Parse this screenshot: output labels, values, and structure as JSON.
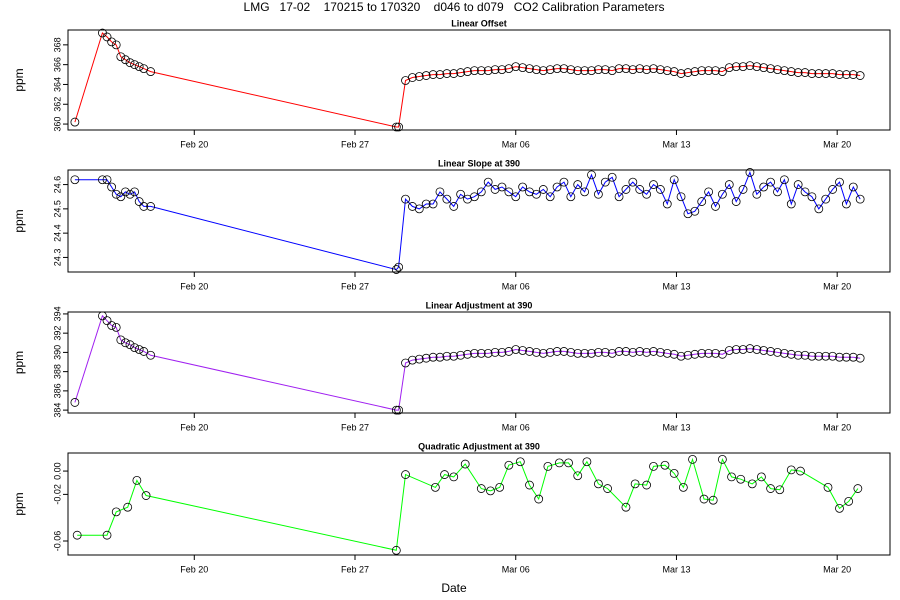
{
  "title": "LMG   17-02    170215 to 170320    d046 to d079   CO2 Calibration Parameters",
  "xlabel": "Date",
  "chart_data": [
    {
      "type": "line",
      "marker": "circle",
      "title": "Linear Offset",
      "ylabel": "ppm",
      "color": "#ff0000",
      "xlim": [
        45.5,
        81.3
      ],
      "xticks": [
        {
          "value": 51,
          "label": "Feb 20"
        },
        {
          "value": 58,
          "label": "Feb 27"
        },
        {
          "value": 65,
          "label": "Mar 06"
        },
        {
          "value": 72,
          "label": "Mar 13"
        },
        {
          "value": 79,
          "label": "Mar 20"
        }
      ],
      "ylim": [
        359.4,
        369.5
      ],
      "yticks": [
        360,
        362,
        364,
        366,
        368
      ],
      "x": [
        45.8,
        47.0,
        47.2,
        47.4,
        47.6,
        47.8,
        48.0,
        48.2,
        48.4,
        48.6,
        48.8,
        49.1,
        59.8,
        59.9,
        60.2,
        60.5,
        60.8,
        61.1,
        61.4,
        61.7,
        62.0,
        62.3,
        62.6,
        62.9,
        63.2,
        63.5,
        63.8,
        64.1,
        64.4,
        64.7,
        65.0,
        65.3,
        65.6,
        65.9,
        66.2,
        66.5,
        66.8,
        67.1,
        67.4,
        67.7,
        68.0,
        68.3,
        68.6,
        68.9,
        69.2,
        69.5,
        69.8,
        70.1,
        70.4,
        70.7,
        71.0,
        71.3,
        71.6,
        71.9,
        72.2,
        72.5,
        72.8,
        73.1,
        73.4,
        73.7,
        74.0,
        74.3,
        74.6,
        74.9,
        75.2,
        75.5,
        75.8,
        76.1,
        76.4,
        76.7,
        77.0,
        77.3,
        77.6,
        77.9,
        78.2,
        78.5,
        78.8,
        79.1,
        79.4,
        79.7,
        80.0
      ],
      "values": [
        360.2,
        369.2,
        368.8,
        368.3,
        368.0,
        366.8,
        366.5,
        366.2,
        366.0,
        365.8,
        365.6,
        365.3,
        359.7,
        359.7,
        364.4,
        364.7,
        364.8,
        364.9,
        365.0,
        365.0,
        365.1,
        365.1,
        365.2,
        365.3,
        365.4,
        365.4,
        365.4,
        365.5,
        365.5,
        365.6,
        365.8,
        365.7,
        365.6,
        365.5,
        365.4,
        365.5,
        365.6,
        365.6,
        365.5,
        365.4,
        365.4,
        365.4,
        365.5,
        365.5,
        365.4,
        365.6,
        365.6,
        365.5,
        365.6,
        365.5,
        365.6,
        365.5,
        365.4,
        365.3,
        365.1,
        365.2,
        365.3,
        365.4,
        365.4,
        365.4,
        365.3,
        365.7,
        365.8,
        365.8,
        365.9,
        365.8,
        365.7,
        365.6,
        365.5,
        365.4,
        365.3,
        365.2,
        365.2,
        365.1,
        365.1,
        365.1,
        365.1,
        365.0,
        365.0,
        365.0,
        364.9
      ]
    },
    {
      "type": "line",
      "marker": "circle",
      "title": "Linear Slope at 390",
      "ylabel": "ppm",
      "color": "#0000ff",
      "xlim": [
        45.5,
        81.3
      ],
      "xticks": [
        {
          "value": 51,
          "label": "Feb 20"
        },
        {
          "value": 58,
          "label": "Feb 27"
        },
        {
          "value": 65,
          "label": "Mar 06"
        },
        {
          "value": 72,
          "label": "Mar 13"
        },
        {
          "value": 79,
          "label": "Mar 20"
        }
      ],
      "ylim": [
        24.24,
        24.66
      ],
      "yticks": [
        24.3,
        24.4,
        24.5,
        24.6
      ],
      "x": [
        45.8,
        47.0,
        47.2,
        47.4,
        47.6,
        47.8,
        48.0,
        48.2,
        48.4,
        48.6,
        48.8,
        49.1,
        59.8,
        59.9,
        60.2,
        60.5,
        60.8,
        61.1,
        61.4,
        61.7,
        62.0,
        62.3,
        62.6,
        62.9,
        63.2,
        63.5,
        63.8,
        64.1,
        64.4,
        64.7,
        65.0,
        65.3,
        65.6,
        65.9,
        66.2,
        66.5,
        66.8,
        67.1,
        67.4,
        67.7,
        68.0,
        68.3,
        68.6,
        68.9,
        69.2,
        69.5,
        69.8,
        70.1,
        70.4,
        70.7,
        71.0,
        71.3,
        71.6,
        71.9,
        72.2,
        72.5,
        72.8,
        73.1,
        73.4,
        73.7,
        74.0,
        74.3,
        74.6,
        74.9,
        75.2,
        75.5,
        75.8,
        76.1,
        76.4,
        76.7,
        77.0,
        77.3,
        77.6,
        77.9,
        78.2,
        78.5,
        78.8,
        79.1,
        79.4,
        79.7,
        80.0
      ],
      "values": [
        24.62,
        24.62,
        24.62,
        24.59,
        24.56,
        24.55,
        24.57,
        24.56,
        24.57,
        24.53,
        24.51,
        24.51,
        24.25,
        24.26,
        24.54,
        24.51,
        24.5,
        24.52,
        24.52,
        24.57,
        24.54,
        24.51,
        24.56,
        24.54,
        24.55,
        24.57,
        24.61,
        24.58,
        24.59,
        24.57,
        24.55,
        24.59,
        24.57,
        24.56,
        24.58,
        24.55,
        24.59,
        24.61,
        24.55,
        24.6,
        24.57,
        24.64,
        24.56,
        24.61,
        24.63,
        24.55,
        24.58,
        24.61,
        24.58,
        24.56,
        24.6,
        24.58,
        24.52,
        24.62,
        24.55,
        24.48,
        24.49,
        24.53,
        24.57,
        24.51,
        24.56,
        24.6,
        24.53,
        24.58,
        24.65,
        24.56,
        24.59,
        24.61,
        24.57,
        24.62,
        24.52,
        24.6,
        24.57,
        24.55,
        24.5,
        24.54,
        24.58,
        24.61,
        24.52,
        24.59,
        24.54
      ]
    },
    {
      "type": "line",
      "marker": "circle",
      "title": "Linear Adjustment at 390",
      "ylabel": "ppm",
      "color": "#a020f0",
      "xlim": [
        45.5,
        81.3
      ],
      "xticks": [
        {
          "value": 51,
          "label": "Feb 20"
        },
        {
          "value": 58,
          "label": "Feb 27"
        },
        {
          "value": 65,
          "label": "Mar 06"
        },
        {
          "value": 72,
          "label": "Mar 13"
        },
        {
          "value": 79,
          "label": "Mar 20"
        }
      ],
      "ylim": [
        383.7,
        394.2
      ],
      "yticks": [
        384,
        386,
        388,
        390,
        392,
        394
      ],
      "x": [
        45.8,
        47.0,
        47.2,
        47.4,
        47.6,
        47.8,
        48.0,
        48.2,
        48.4,
        48.6,
        48.8,
        49.1,
        59.8,
        59.9,
        60.2,
        60.5,
        60.8,
        61.1,
        61.4,
        61.7,
        62.0,
        62.3,
        62.6,
        62.9,
        63.2,
        63.5,
        63.8,
        64.1,
        64.4,
        64.7,
        65.0,
        65.3,
        65.6,
        65.9,
        66.2,
        66.5,
        66.8,
        67.1,
        67.4,
        67.7,
        68.0,
        68.3,
        68.6,
        68.9,
        69.2,
        69.5,
        69.8,
        70.1,
        70.4,
        70.7,
        71.0,
        71.3,
        71.6,
        71.9,
        72.2,
        72.5,
        72.8,
        73.1,
        73.4,
        73.7,
        74.0,
        74.3,
        74.6,
        74.9,
        75.2,
        75.5,
        75.8,
        76.1,
        76.4,
        76.7,
        77.0,
        77.3,
        77.6,
        77.9,
        78.2,
        78.5,
        78.8,
        79.1,
        79.4,
        79.7,
        80.0
      ],
      "values": [
        384.8,
        393.8,
        393.3,
        392.8,
        392.6,
        391.3,
        391.0,
        390.8,
        390.5,
        390.3,
        390.1,
        389.7,
        384.0,
        384.0,
        388.9,
        389.2,
        389.3,
        389.4,
        389.5,
        389.5,
        389.6,
        389.6,
        389.7,
        389.8,
        389.9,
        389.9,
        389.9,
        390.0,
        390.0,
        390.1,
        390.3,
        390.2,
        390.1,
        390.0,
        389.9,
        390.0,
        390.1,
        390.1,
        390.0,
        389.9,
        389.9,
        389.9,
        390.0,
        390.0,
        389.9,
        390.1,
        390.1,
        390.0,
        390.1,
        390.0,
        390.1,
        390.0,
        389.9,
        389.8,
        389.6,
        389.7,
        389.8,
        389.9,
        389.9,
        389.9,
        389.8,
        390.2,
        390.3,
        390.3,
        390.4,
        390.3,
        390.2,
        390.1,
        390.0,
        389.9,
        389.8,
        389.7,
        389.7,
        389.6,
        389.6,
        389.6,
        389.6,
        389.5,
        389.5,
        389.5,
        389.4
      ]
    },
    {
      "type": "line",
      "marker": "circle",
      "title": "Quadratic Adjustment at 390",
      "ylabel": "ppm",
      "color": "#00ff00",
      "xlim": [
        45.5,
        81.3
      ],
      "xticks": [
        {
          "value": 51,
          "label": "Feb 20"
        },
        {
          "value": 58,
          "label": "Feb 27"
        },
        {
          "value": 65,
          "label": "Mar 06"
        },
        {
          "value": 72,
          "label": "Mar 13"
        },
        {
          "value": 79,
          "label": "Mar 20"
        }
      ],
      "ylim": [
        -0.072,
        0.0155
      ],
      "yticks": [
        -0.06,
        -0.02,
        {
          "value": 0,
          "label": "0.00"
        }
      ],
      "x": [
        45.9,
        47.2,
        47.6,
        48.1,
        48.5,
        48.9,
        59.8,
        60.2,
        61.5,
        61.9,
        62.3,
        62.8,
        63.5,
        63.9,
        64.3,
        64.7,
        65.2,
        65.6,
        66.0,
        66.4,
        66.9,
        67.3,
        67.7,
        68.1,
        68.6,
        69.0,
        69.8,
        70.2,
        70.7,
        71.0,
        71.5,
        71.9,
        72.3,
        72.7,
        73.2,
        73.6,
        74.0,
        74.4,
        74.8,
        75.3,
        75.7,
        76.1,
        76.5,
        77.0,
        77.4,
        78.6,
        79.1,
        79.5,
        79.9
      ],
      "values": [
        -0.055,
        -0.055,
        -0.035,
        -0.031,
        -0.008,
        -0.021,
        -0.068,
        -0.003,
        -0.014,
        -0.003,
        -0.005,
        0.006,
        -0.015,
        -0.017,
        -0.014,
        0.005,
        0.008,
        -0.012,
        -0.024,
        0.004,
        0.007,
        0.007,
        -0.004,
        0.008,
        -0.011,
        -0.015,
        -0.031,
        -0.011,
        -0.012,
        0.004,
        0.005,
        -0.002,
        -0.014,
        0.01,
        -0.024,
        -0.025,
        0.01,
        -0.005,
        -0.007,
        -0.011,
        -0.005,
        -0.015,
        -0.016,
        0.001,
        0.0,
        -0.014,
        -0.032,
        -0.026,
        -0.015
      ]
    }
  ]
}
